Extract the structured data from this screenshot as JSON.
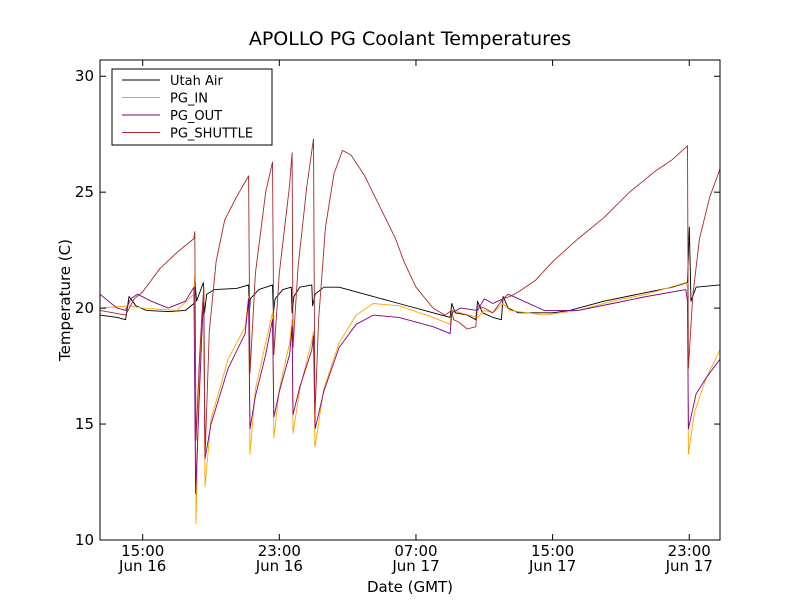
{
  "chart_data": {
    "type": "line",
    "title": "APOLLO PG Coolant Temperatures",
    "xlabel": "Date (GMT)",
    "ylabel": "Temperature (C)",
    "x_unit": "hours after 2013-06-16 00:00 GMT",
    "xlim": [
      12.5,
      48.8
    ],
    "ylim": [
      10,
      30.7
    ],
    "grid": false,
    "legend_position": "top-left",
    "x_ticks": [
      {
        "x": 15,
        "time": "15:00",
        "date": "Jun 16"
      },
      {
        "x": 23,
        "time": "23:00",
        "date": "Jun 16"
      },
      {
        "x": 31,
        "time": "07:00",
        "date": "Jun 17"
      },
      {
        "x": 39,
        "time": "15:00",
        "date": "Jun 17"
      },
      {
        "x": 47,
        "time": "23:00",
        "date": "Jun 17"
      }
    ],
    "y_ticks": [
      10,
      15,
      20,
      25,
      30
    ],
    "series": [
      {
        "name": "Utah Air",
        "color": "#000000",
        "points": [
          [
            12.5,
            19.7
          ],
          [
            13.5,
            19.6
          ],
          [
            14.0,
            19.5
          ],
          [
            14.2,
            20.5
          ],
          [
            14.6,
            20.1
          ],
          [
            15.2,
            19.9
          ],
          [
            16.5,
            19.85
          ],
          [
            17.5,
            19.9
          ],
          [
            18.0,
            20.2
          ],
          [
            18.05,
            21.3
          ],
          [
            18.15,
            20.3
          ],
          [
            18.4,
            20.8
          ],
          [
            18.55,
            21.1
          ],
          [
            18.62,
            19.8
          ],
          [
            18.75,
            20.6
          ],
          [
            19.2,
            20.8
          ],
          [
            20.5,
            20.85
          ],
          [
            21.2,
            21.0
          ],
          [
            21.25,
            19.8
          ],
          [
            21.3,
            20.4
          ],
          [
            21.8,
            20.8
          ],
          [
            22.6,
            21.0
          ],
          [
            22.65,
            19.8
          ],
          [
            22.75,
            20.4
          ],
          [
            23.2,
            20.8
          ],
          [
            23.7,
            20.9
          ],
          [
            23.75,
            19.8
          ],
          [
            23.85,
            20.5
          ],
          [
            24.2,
            20.9
          ],
          [
            24.9,
            21.0
          ],
          [
            24.95,
            20.1
          ],
          [
            25.1,
            20.6
          ],
          [
            25.6,
            20.9
          ],
          [
            26.5,
            20.9
          ],
          [
            28.0,
            20.6
          ],
          [
            30.0,
            20.2
          ],
          [
            32.0,
            19.8
          ],
          [
            33.0,
            19.6
          ],
          [
            33.1,
            20.2
          ],
          [
            33.3,
            19.8
          ],
          [
            34.0,
            19.7
          ],
          [
            34.5,
            19.5
          ],
          [
            34.6,
            20.3
          ],
          [
            34.9,
            19.8
          ],
          [
            35.5,
            19.6
          ],
          [
            36.0,
            19.5
          ],
          [
            36.1,
            20.5
          ],
          [
            36.4,
            20.0
          ],
          [
            37.0,
            19.8
          ],
          [
            39.0,
            19.8
          ],
          [
            40.0,
            19.9
          ],
          [
            42.0,
            20.3
          ],
          [
            44.0,
            20.6
          ],
          [
            46.0,
            20.9
          ],
          [
            46.9,
            21.1
          ],
          [
            47.0,
            23.5
          ],
          [
            47.1,
            20.3
          ],
          [
            47.4,
            20.9
          ],
          [
            48.8,
            21.0
          ]
        ]
      },
      {
        "name": "PG_IN",
        "color": "#ffa500",
        "points": [
          [
            12.5,
            20.0
          ],
          [
            14.2,
            20.1
          ],
          [
            15.0,
            20.0
          ],
          [
            17.0,
            19.9
          ],
          [
            18.0,
            20.6
          ],
          [
            18.05,
            21.4
          ],
          [
            18.12,
            10.7
          ],
          [
            18.3,
            17.0
          ],
          [
            18.5,
            20.0
          ],
          [
            18.58,
            20.9
          ],
          [
            18.65,
            12.3
          ],
          [
            19.0,
            15.2
          ],
          [
            20.0,
            17.8
          ],
          [
            21.0,
            19.2
          ],
          [
            21.2,
            20.5
          ],
          [
            21.28,
            13.7
          ],
          [
            21.6,
            16.5
          ],
          [
            22.2,
            18.5
          ],
          [
            22.6,
            19.8
          ],
          [
            22.68,
            14.4
          ],
          [
            23.0,
            16.5
          ],
          [
            23.6,
            18.5
          ],
          [
            23.75,
            19.5
          ],
          [
            23.8,
            14.6
          ],
          [
            24.2,
            16.5
          ],
          [
            24.9,
            18.6
          ],
          [
            25.0,
            19.0
          ],
          [
            25.08,
            14.0
          ],
          [
            25.6,
            16.5
          ],
          [
            26.5,
            18.5
          ],
          [
            27.5,
            19.7
          ],
          [
            28.5,
            20.2
          ],
          [
            30.0,
            20.1
          ],
          [
            32.0,
            19.6
          ],
          [
            33.0,
            19.3
          ],
          [
            33.1,
            19.9
          ],
          [
            34.6,
            19.6
          ],
          [
            35.0,
            19.9
          ],
          [
            35.5,
            19.8
          ],
          [
            36.1,
            20.2
          ],
          [
            36.5,
            19.9
          ],
          [
            38.5,
            19.7
          ],
          [
            40.5,
            19.9
          ],
          [
            42.5,
            20.3
          ],
          [
            44.5,
            20.6
          ],
          [
            46.8,
            21.1
          ],
          [
            46.9,
            20.9
          ],
          [
            46.95,
            13.7
          ],
          [
            47.3,
            15.5
          ],
          [
            48.0,
            17.0
          ],
          [
            48.8,
            18.2
          ]
        ]
      },
      {
        "name": "PG_OUT",
        "color": "#800080",
        "points": [
          [
            12.5,
            20.6
          ],
          [
            13.0,
            20.3
          ],
          [
            13.5,
            20.0
          ],
          [
            14.0,
            19.9
          ],
          [
            14.3,
            20.4
          ],
          [
            14.7,
            20.6
          ],
          [
            15.5,
            20.3
          ],
          [
            16.5,
            20.0
          ],
          [
            17.5,
            20.3
          ],
          [
            18.0,
            20.9
          ],
          [
            18.1,
            12.0
          ],
          [
            18.3,
            16.0
          ],
          [
            18.5,
            19.5
          ],
          [
            18.57,
            20.3
          ],
          [
            18.65,
            13.5
          ],
          [
            19.0,
            15.0
          ],
          [
            20.0,
            17.4
          ],
          [
            21.0,
            18.9
          ],
          [
            21.2,
            20.4
          ],
          [
            21.28,
            14.8
          ],
          [
            21.6,
            16.2
          ],
          [
            22.2,
            18.0
          ],
          [
            22.6,
            19.5
          ],
          [
            22.68,
            15.3
          ],
          [
            23.0,
            16.4
          ],
          [
            23.6,
            18.0
          ],
          [
            23.75,
            19.2
          ],
          [
            23.8,
            15.4
          ],
          [
            24.2,
            16.6
          ],
          [
            24.9,
            18.2
          ],
          [
            25.0,
            18.8
          ],
          [
            25.1,
            14.8
          ],
          [
            25.6,
            16.4
          ],
          [
            26.5,
            18.3
          ],
          [
            27.5,
            19.3
          ],
          [
            28.5,
            19.7
          ],
          [
            30.0,
            19.6
          ],
          [
            32.0,
            19.2
          ],
          [
            33.0,
            18.9
          ],
          [
            33.1,
            19.8
          ],
          [
            33.6,
            20.0
          ],
          [
            34.6,
            19.9
          ],
          [
            35.0,
            20.4
          ],
          [
            35.5,
            20.2
          ],
          [
            36.1,
            20.4
          ],
          [
            36.4,
            20.6
          ],
          [
            37.0,
            20.4
          ],
          [
            38.5,
            19.9
          ],
          [
            40.5,
            19.9
          ],
          [
            42.5,
            20.2
          ],
          [
            44.5,
            20.5
          ],
          [
            46.8,
            20.8
          ],
          [
            46.9,
            20.3
          ],
          [
            46.95,
            14.8
          ],
          [
            47.4,
            16.3
          ],
          [
            48.0,
            17.0
          ],
          [
            48.8,
            17.8
          ]
        ]
      },
      {
        "name": "PG_SHUTTLE",
        "color": "#a52a2a",
        "points": [
          [
            12.5,
            19.9
          ],
          [
            14.0,
            19.7
          ],
          [
            14.5,
            20.4
          ],
          [
            15.0,
            20.7
          ],
          [
            16.0,
            21.7
          ],
          [
            17.0,
            22.4
          ],
          [
            18.0,
            23.0
          ],
          [
            18.05,
            23.3
          ],
          [
            18.12,
            14.3
          ],
          [
            18.3,
            17.5
          ],
          [
            18.45,
            19.5
          ],
          [
            18.58,
            20.9
          ],
          [
            18.65,
            13.5
          ],
          [
            18.9,
            19.0
          ],
          [
            19.3,
            22.0
          ],
          [
            19.8,
            23.8
          ],
          [
            20.5,
            24.8
          ],
          [
            21.2,
            25.7
          ],
          [
            21.28,
            17.2
          ],
          [
            21.6,
            21.5
          ],
          [
            22.2,
            25.0
          ],
          [
            22.6,
            26.3
          ],
          [
            22.68,
            18.0
          ],
          [
            23.0,
            21.5
          ],
          [
            23.6,
            25.3
          ],
          [
            23.75,
            26.7
          ],
          [
            23.8,
            18.3
          ],
          [
            24.1,
            21.8
          ],
          [
            24.6,
            25.2
          ],
          [
            25.0,
            27.3
          ],
          [
            25.08,
            15.3
          ],
          [
            25.3,
            19.5
          ],
          [
            25.7,
            23.5
          ],
          [
            26.2,
            25.8
          ],
          [
            26.7,
            26.8
          ],
          [
            27.2,
            26.6
          ],
          [
            28.0,
            25.7
          ],
          [
            29.0,
            24.2
          ],
          [
            29.8,
            23.0
          ],
          [
            30.3,
            22.0
          ],
          [
            31.0,
            20.9
          ],
          [
            32.0,
            20.0
          ],
          [
            32.7,
            19.7
          ],
          [
            33.1,
            19.9
          ],
          [
            33.2,
            19.5
          ],
          [
            33.5,
            19.4
          ],
          [
            34.0,
            19.1
          ],
          [
            34.5,
            19.2
          ],
          [
            34.6,
            20.1
          ],
          [
            35.0,
            20.0
          ],
          [
            35.5,
            19.8
          ],
          [
            36.1,
            20.4
          ],
          [
            36.5,
            20.5
          ],
          [
            37.0,
            20.7
          ],
          [
            38.0,
            21.2
          ],
          [
            39.0,
            22.0
          ],
          [
            40.5,
            23.0
          ],
          [
            42.0,
            23.9
          ],
          [
            43.5,
            25.0
          ],
          [
            45.0,
            25.9
          ],
          [
            46.0,
            26.4
          ],
          [
            46.9,
            27.0
          ],
          [
            46.95,
            17.4
          ],
          [
            47.2,
            20.5
          ],
          [
            47.6,
            23.0
          ],
          [
            48.2,
            24.8
          ],
          [
            48.8,
            26.0
          ]
        ]
      }
    ]
  }
}
